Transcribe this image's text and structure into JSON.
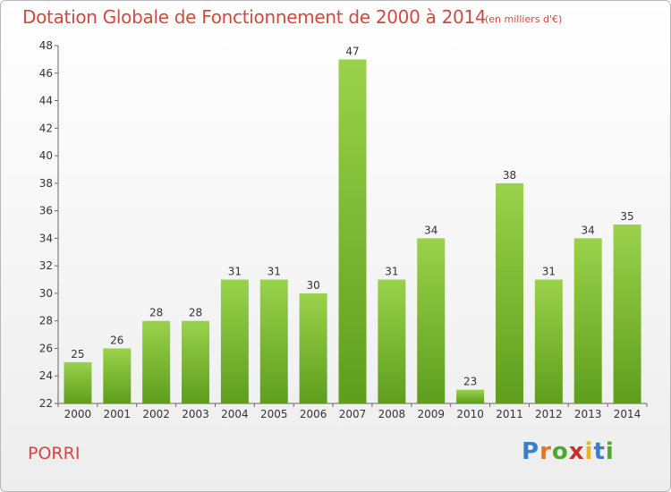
{
  "title": "Dotation Globale de Fonctionnement de 2000 à 2014",
  "subtitle": "(en milliers d'€)",
  "commune": "PORRI",
  "logo": {
    "text": "Proxiti",
    "letter_colors": [
      "#3a7fc7",
      "#e8731f",
      "#4ea72e",
      "#c9302c",
      "#e8b41f",
      "#3a7fc7",
      "#4ea72e"
    ]
  },
  "colors": {
    "title": "#d04a3e",
    "bar_top": "#9ad24b",
    "bar_bottom": "#5e9e1d"
  },
  "chart_data": {
    "type": "bar",
    "categories": [
      "2000",
      "2001",
      "2002",
      "2003",
      "2004",
      "2005",
      "2006",
      "2007",
      "2008",
      "2009",
      "2010",
      "2011",
      "2012",
      "2013",
      "2014"
    ],
    "values": [
      25,
      26,
      28,
      28,
      31,
      31,
      30,
      47,
      31,
      34,
      23,
      38,
      31,
      34,
      35
    ],
    "ylim": [
      22,
      48
    ],
    "yticks": [
      22,
      24,
      26,
      28,
      30,
      32,
      34,
      36,
      38,
      40,
      42,
      44,
      46,
      48
    ],
    "grid": false,
    "data_labels": true
  }
}
